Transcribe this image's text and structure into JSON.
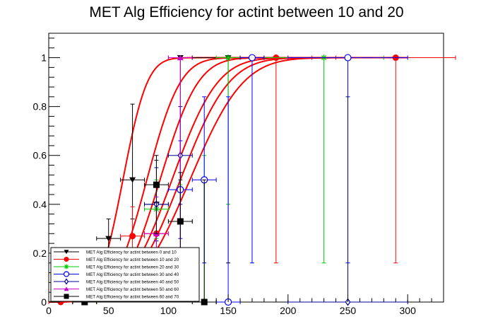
{
  "chart_data": {
    "type": "scatter",
    "title": "MET Alg Efficiency for actint between 10 and 20",
    "xlabel": "",
    "ylabel": "",
    "xlim": [
      0,
      330
    ],
    "ylim": [
      0,
      1.1
    ],
    "x_ticks": [
      0,
      50,
      100,
      150,
      200,
      250,
      300
    ],
    "y_ticks": [
      0,
      0.2,
      0.4,
      0.6,
      0.8,
      1
    ],
    "x_tick_labels": [
      "0",
      "50",
      "100",
      "150",
      "200",
      "250",
      "300"
    ],
    "y_tick_labels": [
      "0",
      "0.2",
      "0.4",
      "0.6",
      "0.8",
      "1"
    ],
    "grid": false,
    "legend_position": "bottom-left",
    "series": [
      {
        "name": "MET Alg Efficiency for actint between 0 and 10",
        "color": "#000000",
        "marker": "triangle-down",
        "points": [
          {
            "x": 10,
            "y": 0,
            "xerr": 10,
            "eyl": 0,
            "eyh": 0.02
          },
          {
            "x": 30,
            "y": 0,
            "xerr": 10,
            "eyl": 0,
            "eyh": 0.02
          },
          {
            "x": 50,
            "y": 0.26,
            "xerr": 10,
            "eyl": 0.12,
            "eyh": 0.08
          },
          {
            "x": 70,
            "y": 0.5,
            "xerr": 10,
            "eyl": 0.16,
            "eyh": 0.31
          },
          {
            "x": 90,
            "y": 0.4,
            "xerr": 10,
            "eyl": 0.2,
            "eyh": 0.2
          },
          {
            "x": 110,
            "y": 1,
            "xerr": 10,
            "eyl": 0.5,
            "eyh": 0
          },
          {
            "x": 150,
            "y": 1,
            "xerr": 30,
            "eyl": 0.84,
            "eyh": 0
          }
        ]
      },
      {
        "name": "MET Alg Efficiency for actint between 10 and 20",
        "color": "#ff0000",
        "marker": "circle-filled",
        "points": [
          {
            "x": 10,
            "y": 0,
            "xerr": 10,
            "eyl": 0,
            "eyh": 0.01
          },
          {
            "x": 30,
            "y": 0,
            "xerr": 10,
            "eyl": 0,
            "eyh": 0.01
          },
          {
            "x": 70,
            "y": 0.27,
            "xerr": 10,
            "eyl": 0.12,
            "eyh": 0.12
          },
          {
            "x": 90,
            "y": 0.28,
            "xerr": 10,
            "eyl": 0.1,
            "eyh": 0.1
          },
          {
            "x": 190,
            "y": 1,
            "xerr": 30,
            "eyl": 0.84,
            "eyh": 0
          },
          {
            "x": 290,
            "y": 1,
            "xerr": 50,
            "eyl": 0.84,
            "eyh": 0
          }
        ]
      },
      {
        "name": "MET Alg Efficiency for actint between 20 and 30",
        "color": "#00cc00",
        "marker": "star",
        "points": [
          {
            "x": 30,
            "y": 0,
            "xerr": 10,
            "eyl": 0,
            "eyh": 0.01
          },
          {
            "x": 90,
            "y": 0.38,
            "xerr": 10,
            "eyl": 0.12,
            "eyh": 0.12
          },
          {
            "x": 110,
            "y": 0.33,
            "xerr": 10,
            "eyl": 0.15,
            "eyh": 0.15
          },
          {
            "x": 130,
            "y": 0,
            "xerr": 10,
            "eyl": 0,
            "eyh": 0.6
          },
          {
            "x": 150,
            "y": 1,
            "xerr": 10,
            "eyl": 0.6,
            "eyh": 0
          },
          {
            "x": 230,
            "y": 1,
            "xerr": 50,
            "eyl": 0.84,
            "eyh": 0
          }
        ]
      },
      {
        "name": "MET Alg Efficiency for actint between 30 and 40",
        "color": "#0000ff",
        "marker": "circle-open",
        "points": [
          {
            "x": 110,
            "y": 0.46,
            "xerr": 10,
            "eyl": 0.2,
            "eyh": 0.2
          },
          {
            "x": 130,
            "y": 0.5,
            "xerr": 10,
            "eyl": 0.34,
            "eyh": 0.34
          },
          {
            "x": 150,
            "y": 0,
            "xerr": 10,
            "eyl": 0,
            "eyh": 0.84
          },
          {
            "x": 170,
            "y": 1,
            "xerr": 10,
            "eyl": 0.84,
            "eyh": 0
          },
          {
            "x": 250,
            "y": 1,
            "xerr": 50,
            "eyl": 0.84,
            "eyh": 0
          }
        ]
      },
      {
        "name": "MET Alg Efficiency for actint between 40 and 50",
        "color": "#000099",
        "marker": "diamond-open",
        "points": [
          {
            "x": 90,
            "y": 0.4,
            "xerr": 10,
            "eyl": 0.15,
            "eyh": 0.15
          },
          {
            "x": 110,
            "y": 0.6,
            "xerr": 10,
            "eyl": 0.2,
            "eyh": 0.2
          },
          {
            "x": 250,
            "y": 0,
            "xerr": 50,
            "eyl": 0,
            "eyh": 0.84
          }
        ]
      },
      {
        "name": "MET Alg Efficiency for actint between 50 and 60",
        "color": "#cc00cc",
        "marker": "triangle-up",
        "points": [
          {
            "x": 90,
            "y": 0.28,
            "xerr": 10,
            "eyl": 0.15,
            "eyh": 0.15
          },
          {
            "x": 110,
            "y": 1,
            "xerr": 10,
            "eyl": 0.84,
            "eyh": 0
          }
        ]
      },
      {
        "name": "MET Alg Efficiency for actint between 60 and 70",
        "color": "#000000",
        "marker": "square-filled",
        "points": [
          {
            "x": 30,
            "y": 0,
            "xerr": 10,
            "eyl": 0,
            "eyh": 0.01
          },
          {
            "x": 90,
            "y": 0.48,
            "xerr": 10,
            "eyl": 0.2,
            "eyh": 0.1
          },
          {
            "x": 110,
            "y": 0.33,
            "xerr": 10,
            "eyl": 0.2,
            "eyh": 0.2
          },
          {
            "x": 130,
            "y": 0,
            "xerr": 10,
            "eyl": 0,
            "eyh": 0.5
          }
        ]
      }
    ],
    "fit_curves": {
      "color": "#ff0000",
      "curves": [
        {
          "mean": 62,
          "sigma": 16,
          "x_start": 0,
          "x_end": 300
        },
        {
          "mean": 82,
          "sigma": 22,
          "x_start": 0,
          "x_end": 300
        },
        {
          "mean": 93,
          "sigma": 25,
          "x_start": 0,
          "x_end": 300
        },
        {
          "mean": 103,
          "sigma": 30,
          "x_start": 0,
          "x_end": 300
        },
        {
          "mean": 110,
          "sigma": 32,
          "x_start": 0,
          "x_end": 300
        },
        {
          "mean": 118,
          "sigma": 35,
          "x_start": 0,
          "x_end": 300
        }
      ]
    }
  }
}
